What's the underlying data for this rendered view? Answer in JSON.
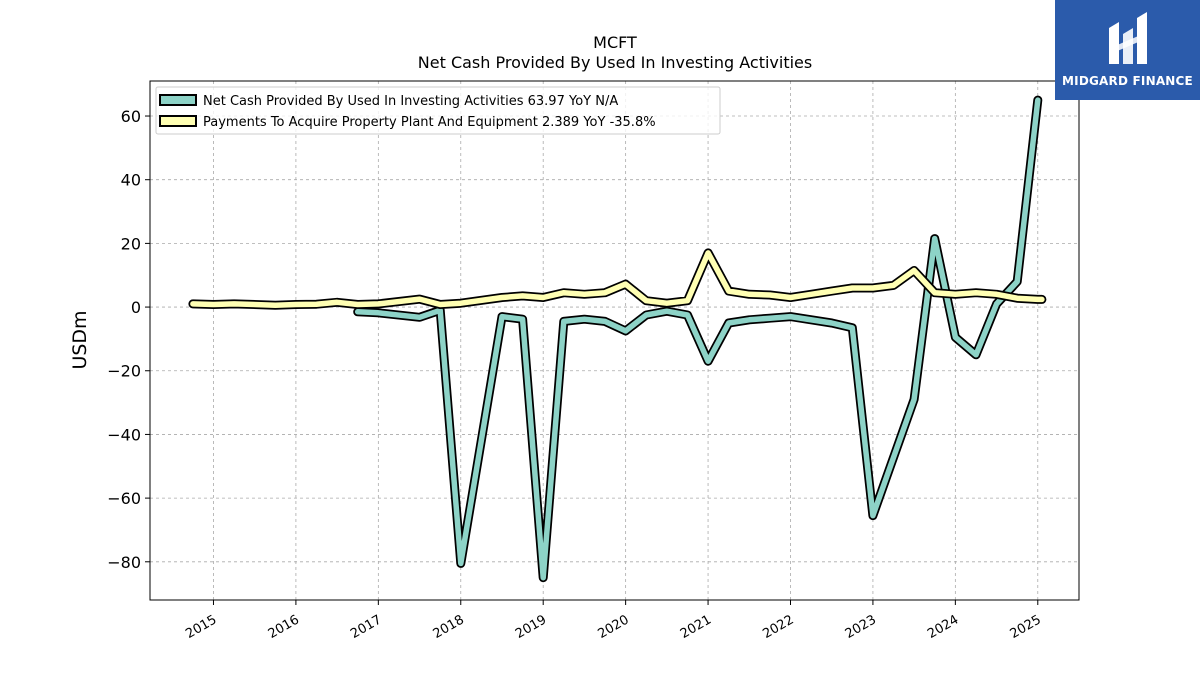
{
  "logo": {
    "text": "MIDGARD FINANCE",
    "bg": "#2b5bab"
  },
  "chart_data": {
    "type": "line",
    "title": "MCFT",
    "subtitle": "Net Cash Provided By Used In Investing Activities",
    "ylabel": "USDm",
    "xlabel": "",
    "ylim": [
      -92,
      71
    ],
    "xlim": [
      2014.23,
      2025.5
    ],
    "yticks": [
      60,
      40,
      20,
      0,
      -20,
      -40,
      -60,
      -80
    ],
    "ytick_labels": [
      "60",
      "40",
      "20",
      "0",
      "−20",
      "−40",
      "−60",
      "−80"
    ],
    "xticks": [
      2015,
      2016,
      2017,
      2018,
      2019,
      2020,
      2021,
      2022,
      2023,
      2024,
      2025
    ],
    "xtick_labels": [
      "2015",
      "2016",
      "2017",
      "2018",
      "2019",
      "2020",
      "2021",
      "2022",
      "2023",
      "2024",
      "2025"
    ],
    "grid": true,
    "legend_position": "top-left",
    "series": [
      {
        "name": "Net Cash Provided By Used In Investing Activities  63.97 YoY N/A",
        "color": "#8dd3c7",
        "points": [
          [
            2016.75,
            -1.5
          ],
          [
            2017.0,
            -1.8
          ],
          [
            2017.5,
            -3.2
          ],
          [
            2017.75,
            -1.0
          ],
          [
            2018.0,
            -80.5
          ],
          [
            2018.5,
            -3.0
          ],
          [
            2018.75,
            -3.8
          ],
          [
            2019.0,
            -85.0
          ],
          [
            2019.25,
            -4.5
          ],
          [
            2019.5,
            -3.8
          ],
          [
            2019.75,
            -4.5
          ],
          [
            2020.0,
            -7.5
          ],
          [
            2020.25,
            -2.5
          ],
          [
            2020.5,
            -1.3
          ],
          [
            2020.75,
            -2.5
          ],
          [
            2021.0,
            -17.0
          ],
          [
            2021.25,
            -5.0
          ],
          [
            2021.5,
            -4.0
          ],
          [
            2021.75,
            -3.5
          ],
          [
            2022.0,
            -3.0
          ],
          [
            2022.5,
            -5.0
          ],
          [
            2022.75,
            -6.5
          ],
          [
            2023.0,
            -65.5
          ],
          [
            2023.5,
            -29.0
          ],
          [
            2023.75,
            21.5
          ],
          [
            2024.0,
            -9.5
          ],
          [
            2024.25,
            -15.0
          ],
          [
            2024.5,
            1.0
          ],
          [
            2024.75,
            8.0
          ],
          [
            2025.0,
            65.0
          ]
        ]
      },
      {
        "name": "Payments To Acquire Property Plant And Equipment  2.389 YoY -35.8%",
        "color": "#ffffb3",
        "points": [
          [
            2014.75,
            1.0
          ],
          [
            2015.0,
            0.8
          ],
          [
            2015.25,
            1.0
          ],
          [
            2015.75,
            0.6
          ],
          [
            2016.0,
            0.8
          ],
          [
            2016.25,
            0.9
          ],
          [
            2016.5,
            1.5
          ],
          [
            2016.75,
            0.8
          ],
          [
            2017.0,
            1.0
          ],
          [
            2017.5,
            2.5
          ],
          [
            2017.75,
            0.8
          ],
          [
            2018.0,
            1.2
          ],
          [
            2018.5,
            3.0
          ],
          [
            2018.75,
            3.5
          ],
          [
            2019.0,
            3.0
          ],
          [
            2019.25,
            4.5
          ],
          [
            2019.5,
            4.0
          ],
          [
            2019.75,
            4.5
          ],
          [
            2020.0,
            7.2
          ],
          [
            2020.25,
            2.0
          ],
          [
            2020.5,
            1.2
          ],
          [
            2020.75,
            2.0
          ],
          [
            2021.0,
            17.0
          ],
          [
            2021.25,
            5.0
          ],
          [
            2021.5,
            4.0
          ],
          [
            2021.75,
            3.8
          ],
          [
            2022.0,
            3.0
          ],
          [
            2022.25,
            4.0
          ],
          [
            2022.5,
            5.0
          ],
          [
            2022.75,
            6.0
          ],
          [
            2023.0,
            6.0
          ],
          [
            2023.25,
            6.8
          ],
          [
            2023.5,
            11.5
          ],
          [
            2023.75,
            4.5
          ],
          [
            2024.0,
            4.0
          ],
          [
            2024.25,
            4.5
          ],
          [
            2024.5,
            4.0
          ],
          [
            2024.75,
            2.8
          ],
          [
            2025.0,
            2.4
          ],
          [
            2025.05,
            2.4
          ]
        ]
      }
    ]
  }
}
